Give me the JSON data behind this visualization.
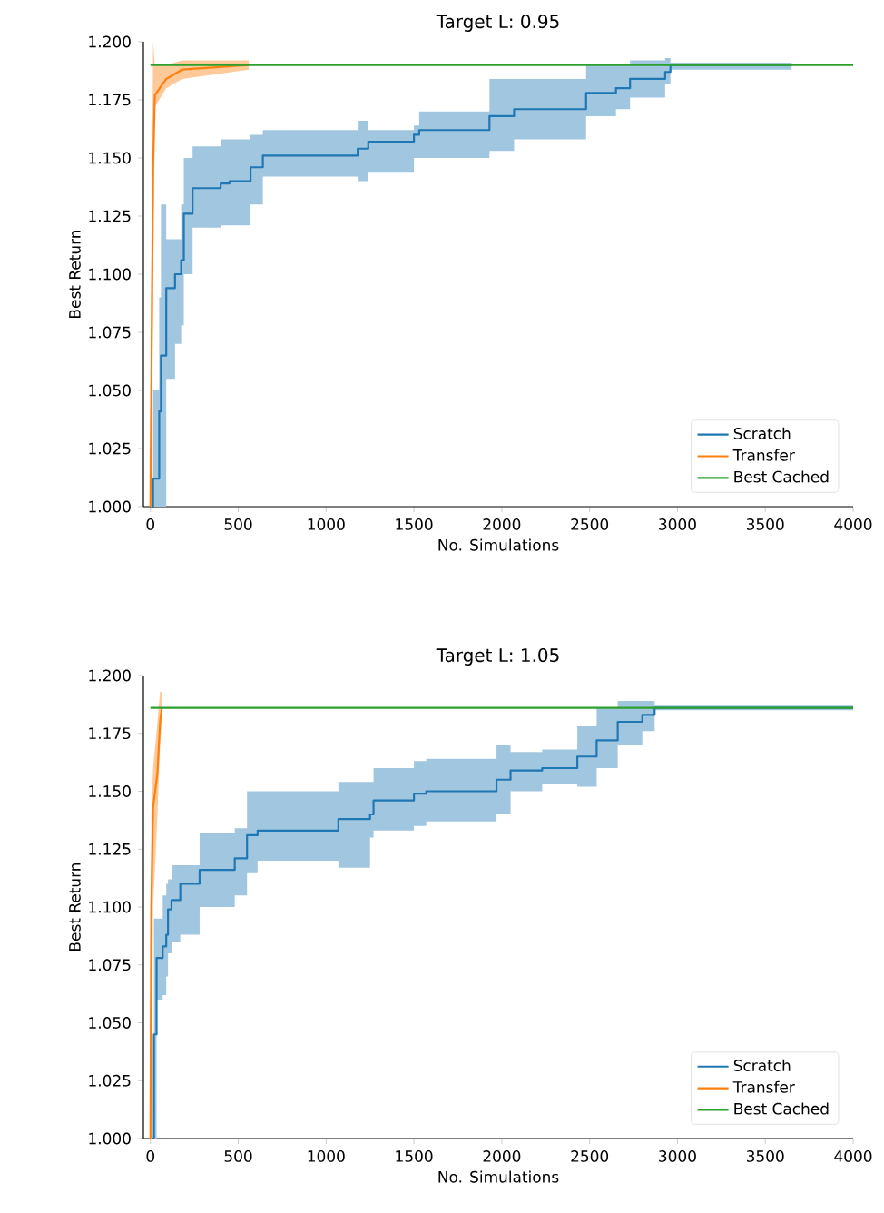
{
  "chart_data": [
    {
      "type": "line",
      "title": "Target L: 0.95",
      "xlabel": "No. Simulations",
      "ylabel": "Best Return",
      "xlim": [
        -40,
        4000
      ],
      "ylim": [
        1.0,
        1.2
      ],
      "xticks": [
        0,
        500,
        1000,
        1500,
        2000,
        2500,
        3000,
        3500,
        4000
      ],
      "yticks": [
        {
          "value": 1.0,
          "label": "1.000"
        },
        {
          "value": 1.025,
          "label": "1.025"
        },
        {
          "value": 1.05,
          "label": "1.050"
        },
        {
          "value": 1.075,
          "label": "1.075"
        },
        {
          "value": 1.1,
          "label": "1.100"
        },
        {
          "value": 1.125,
          "label": "1.125"
        },
        {
          "value": 1.15,
          "label": "1.150"
        },
        {
          "value": 1.175,
          "label": "1.175"
        },
        {
          "value": 1.2,
          "label": "1.200"
        }
      ],
      "legend": "bottom right",
      "grid": false,
      "series": [
        {
          "name": "Scratch",
          "color": "#1f77b4",
          "type": "step",
          "x": [
            10,
            15,
            50,
            60,
            90,
            140,
            175,
            190,
            240,
            400,
            450,
            570,
            640,
            1180,
            1240,
            1500,
            1530,
            1930,
            2070,
            2480,
            2650,
            2730,
            2930,
            2960,
            3650
          ],
          "values": [
            1.0,
            1.012,
            1.041,
            1.065,
            1.094,
            1.1,
            1.106,
            1.126,
            1.137,
            1.139,
            1.14,
            1.146,
            1.151,
            1.154,
            1.157,
            1.16,
            1.162,
            1.168,
            1.171,
            1.178,
            1.18,
            1.184,
            1.187,
            1.19,
            1.19
          ],
          "lower": [
            1.0,
            1.0,
            1.0,
            1.0,
            1.055,
            1.07,
            1.078,
            1.1,
            1.12,
            1.121,
            1.121,
            1.13,
            1.142,
            1.14,
            1.144,
            1.15,
            1.15,
            1.153,
            1.158,
            1.168,
            1.171,
            1.176,
            1.182,
            1.188,
            1.189
          ],
          "upper": [
            1.0,
            1.05,
            1.09,
            1.13,
            1.115,
            1.115,
            1.13,
            1.15,
            1.155,
            1.158,
            1.158,
            1.16,
            1.162,
            1.166,
            1.162,
            1.164,
            1.17,
            1.184,
            1.184,
            1.19,
            1.19,
            1.192,
            1.193,
            1.191,
            1.19
          ]
        },
        {
          "name": "Transfer",
          "color": "#ff7f0e",
          "type": "line",
          "x": [
            0,
            5,
            15,
            25,
            90,
            180,
            560
          ],
          "values": [
            1.0,
            1.05,
            1.145,
            1.177,
            1.184,
            1.188,
            1.19
          ],
          "lower": [
            1.0,
            1.0,
            1.09,
            1.172,
            1.18,
            1.184,
            1.188
          ],
          "upper": [
            1.0,
            1.09,
            1.2,
            1.19,
            1.19,
            1.192,
            1.192
          ]
        },
        {
          "name": "Best Cached",
          "color": "#2ca02c",
          "type": "line",
          "x": [
            0,
            4000
          ],
          "values": [
            1.19,
            1.19
          ]
        }
      ]
    },
    {
      "type": "line",
      "title": "Target L: 1.05",
      "xlabel": "No. Simulations",
      "ylabel": "Best Return",
      "xlim": [
        -40,
        4000
      ],
      "ylim": [
        1.0,
        1.2
      ],
      "xticks": [
        0,
        500,
        1000,
        1500,
        2000,
        2500,
        3000,
        3500,
        4000
      ],
      "yticks": [
        {
          "value": 1.0,
          "label": "1.000"
        },
        {
          "value": 1.025,
          "label": "1.025"
        },
        {
          "value": 1.05,
          "label": "1.050"
        },
        {
          "value": 1.075,
          "label": "1.075"
        },
        {
          "value": 1.1,
          "label": "1.100"
        },
        {
          "value": 1.125,
          "label": "1.125"
        },
        {
          "value": 1.15,
          "label": "1.150"
        },
        {
          "value": 1.175,
          "label": "1.175"
        },
        {
          "value": 1.2,
          "label": "1.200"
        }
      ],
      "legend": "bottom right",
      "grid": false,
      "series": [
        {
          "name": "Scratch",
          "color": "#1f77b4",
          "type": "step",
          "x": [
            15,
            20,
            35,
            70,
            90,
            100,
            120,
            170,
            280,
            480,
            550,
            610,
            1070,
            1250,
            1270,
            1500,
            1570,
            1970,
            2050,
            2230,
            2430,
            2540,
            2660,
            2800,
            2870,
            4000
          ],
          "values": [
            1.0,
            1.045,
            1.078,
            1.083,
            1.088,
            1.099,
            1.103,
            1.11,
            1.116,
            1.121,
            1.131,
            1.133,
            1.138,
            1.14,
            1.146,
            1.149,
            1.15,
            1.155,
            1.159,
            1.16,
            1.165,
            1.172,
            1.18,
            1.183,
            1.186,
            1.186
          ],
          "lower": [
            1.0,
            1.0,
            1.06,
            1.062,
            1.07,
            1.08,
            1.085,
            1.088,
            1.1,
            1.105,
            1.115,
            1.12,
            1.117,
            1.13,
            1.133,
            1.135,
            1.137,
            1.14,
            1.15,
            1.153,
            1.152,
            1.16,
            1.17,
            1.176,
            1.185,
            1.186
          ],
          "upper": [
            1.0,
            1.095,
            1.095,
            1.105,
            1.11,
            1.112,
            1.118,
            1.118,
            1.132,
            1.134,
            1.15,
            1.15,
            1.154,
            1.154,
            1.16,
            1.163,
            1.164,
            1.17,
            1.167,
            1.168,
            1.178,
            1.186,
            1.189,
            1.189,
            1.187,
            1.186
          ]
        },
        {
          "name": "Transfer",
          "color": "#ff7f0e",
          "type": "line",
          "x": [
            0,
            5,
            15,
            40,
            55,
            65
          ],
          "values": [
            1.0,
            1.1,
            1.143,
            1.158,
            1.18,
            1.186
          ],
          "lower": [
            1.0,
            1.0,
            1.1,
            1.14,
            1.17,
            1.18
          ],
          "upper": [
            1.0,
            1.14,
            1.16,
            1.18,
            1.193,
            1.193
          ]
        },
        {
          "name": "Best Cached",
          "color": "#2ca02c",
          "type": "line",
          "x": [
            0,
            4000
          ],
          "values": [
            1.186,
            1.186
          ]
        }
      ]
    }
  ]
}
